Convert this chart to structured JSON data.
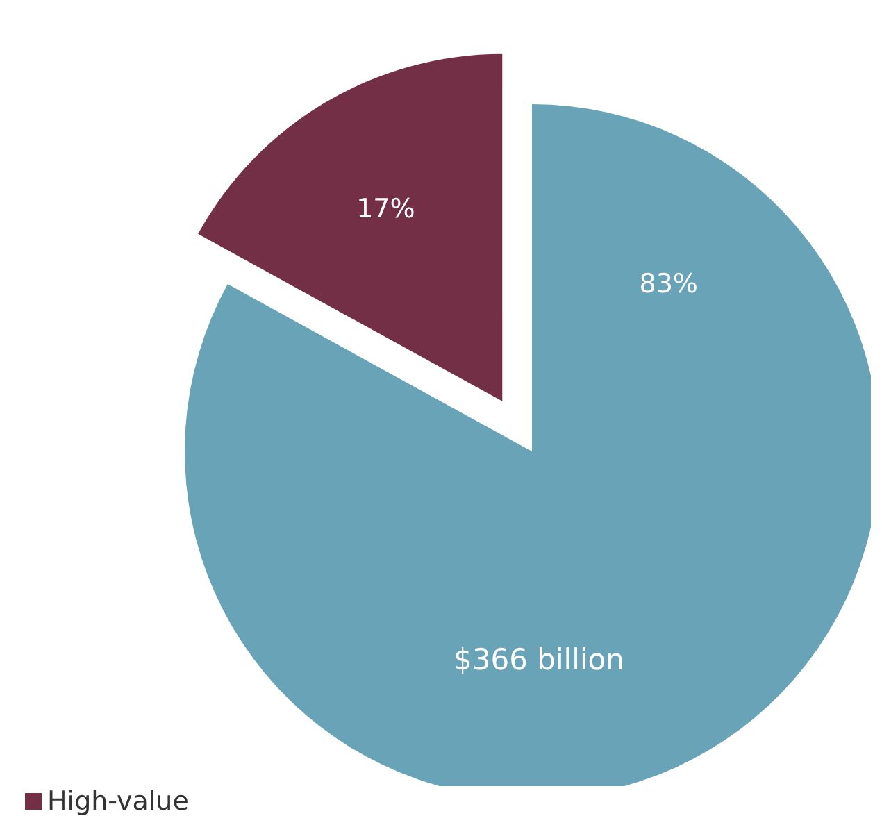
{
  "chart_data": {
    "type": "pie",
    "categories": [
      null,
      "High-value"
    ],
    "values": [
      83,
      17
    ],
    "colors": [
      "#69a3b8",
      "#722f46"
    ],
    "value_labels": [
      "83%",
      "17%"
    ],
    "annotations": [
      "$366 billion"
    ],
    "legend": "bottom left"
  }
}
